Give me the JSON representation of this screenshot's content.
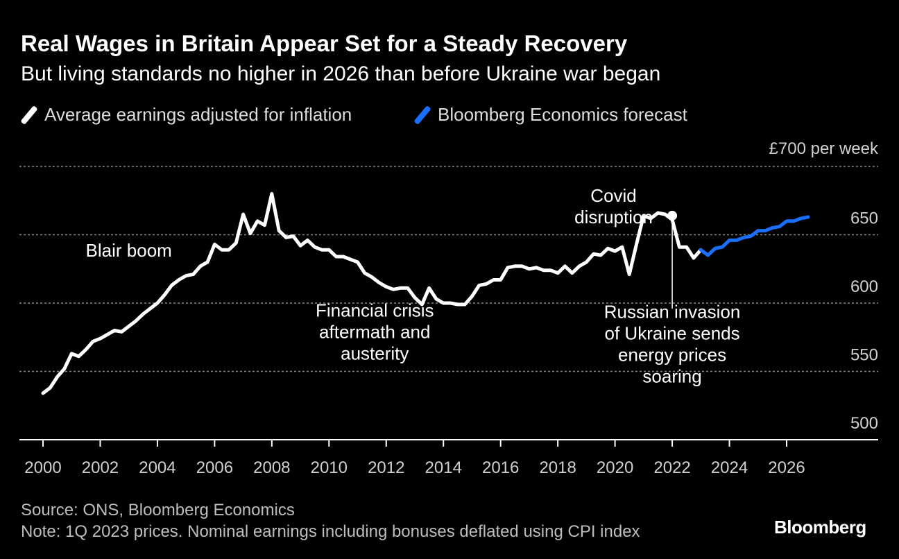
{
  "title": "Real Wages in Britain Appear Set for a Steady Recovery",
  "subtitle": "But living standards no higher in 2026 than before Ukraine war began",
  "legend": [
    {
      "label": "Average earnings adjusted for inflation",
      "color": "#ffffff"
    },
    {
      "label": "Bloomberg Economics forecast",
      "color": "#1a6fff"
    }
  ],
  "footer": {
    "source": "Source: ONS, Bloomberg Economics",
    "note": "Note: 1Q 2023 prices. Nominal earnings including bonuses deflated using CPI index",
    "brand": "Bloomberg"
  },
  "chart_data": {
    "type": "line",
    "xlim": [
      2000,
      2027.5
    ],
    "ylim": [
      500,
      700
    ],
    "x_ticks": [
      2000,
      2002,
      2004,
      2006,
      2008,
      2010,
      2012,
      2014,
      2016,
      2018,
      2020,
      2022,
      2024,
      2026
    ],
    "y_ticks": [
      500,
      550,
      600,
      650,
      700
    ],
    "y_tick_labels": [
      "500",
      "550",
      "600",
      "650",
      "£700"
    ],
    "y_unit_label": "per week",
    "grid": "horizontal-dashed",
    "series": [
      {
        "name": "Average earnings adjusted for inflation",
        "color": "#ffffff",
        "points": [
          [
            2000.0,
            534
          ],
          [
            2000.25,
            538
          ],
          [
            2000.5,
            546
          ],
          [
            2000.75,
            552
          ],
          [
            2001.0,
            563
          ],
          [
            2001.25,
            561
          ],
          [
            2001.5,
            566
          ],
          [
            2001.75,
            572
          ],
          [
            2002.0,
            574
          ],
          [
            2002.25,
            577
          ],
          [
            2002.5,
            580
          ],
          [
            2002.75,
            579
          ],
          [
            2003.0,
            583
          ],
          [
            2003.25,
            587
          ],
          [
            2003.5,
            592
          ],
          [
            2003.75,
            596
          ],
          [
            2004.0,
            600
          ],
          [
            2004.25,
            606
          ],
          [
            2004.5,
            613
          ],
          [
            2004.75,
            617
          ],
          [
            2005.0,
            620
          ],
          [
            2005.25,
            621
          ],
          [
            2005.5,
            627
          ],
          [
            2005.75,
            630
          ],
          [
            2006.0,
            643
          ],
          [
            2006.25,
            639
          ],
          [
            2006.5,
            639
          ],
          [
            2006.75,
            644
          ],
          [
            2007.0,
            665
          ],
          [
            2007.25,
            651
          ],
          [
            2007.5,
            660
          ],
          [
            2007.75,
            657
          ],
          [
            2008.0,
            680
          ],
          [
            2008.25,
            653
          ],
          [
            2008.5,
            648
          ],
          [
            2008.75,
            649
          ],
          [
            2009.0,
            642
          ],
          [
            2009.25,
            646
          ],
          [
            2009.5,
            641
          ],
          [
            2009.75,
            639
          ],
          [
            2010.0,
            639
          ],
          [
            2010.25,
            634
          ],
          [
            2010.5,
            634
          ],
          [
            2010.75,
            632
          ],
          [
            2011.0,
            630
          ],
          [
            2011.25,
            622
          ],
          [
            2011.5,
            619
          ],
          [
            2011.75,
            615
          ],
          [
            2012.0,
            612
          ],
          [
            2012.25,
            610
          ],
          [
            2012.5,
            611
          ],
          [
            2012.75,
            611
          ],
          [
            2013.0,
            604
          ],
          [
            2013.25,
            599
          ],
          [
            2013.5,
            611
          ],
          [
            2013.75,
            603
          ],
          [
            2014.0,
            600
          ],
          [
            2014.25,
            600
          ],
          [
            2014.5,
            599
          ],
          [
            2014.75,
            599
          ],
          [
            2015.0,
            605
          ],
          [
            2015.25,
            613
          ],
          [
            2015.5,
            614
          ],
          [
            2015.75,
            617
          ],
          [
            2016.0,
            617
          ],
          [
            2016.25,
            626
          ],
          [
            2016.5,
            627
          ],
          [
            2016.75,
            627
          ],
          [
            2017.0,
            625
          ],
          [
            2017.25,
            626
          ],
          [
            2017.5,
            624
          ],
          [
            2017.75,
            624
          ],
          [
            2018.0,
            622
          ],
          [
            2018.25,
            627
          ],
          [
            2018.5,
            622
          ],
          [
            2018.75,
            627
          ],
          [
            2019.0,
            630
          ],
          [
            2019.25,
            636
          ],
          [
            2019.5,
            635
          ],
          [
            2019.75,
            640
          ],
          [
            2020.0,
            638
          ],
          [
            2020.25,
            641
          ],
          [
            2020.5,
            621
          ],
          [
            2020.75,
            643
          ],
          [
            2021.0,
            664
          ],
          [
            2021.25,
            662
          ],
          [
            2021.5,
            666
          ],
          [
            2021.75,
            665
          ],
          [
            2022.0,
            661
          ],
          [
            2022.25,
            641
          ],
          [
            2022.5,
            641
          ],
          [
            2022.75,
            633
          ],
          [
            2023.0,
            639
          ]
        ]
      },
      {
        "name": "Bloomberg Economics forecast",
        "color": "#1a6fff",
        "points": [
          [
            2023.0,
            639
          ],
          [
            2023.25,
            635
          ],
          [
            2023.5,
            640
          ],
          [
            2023.75,
            641
          ],
          [
            2024.0,
            646
          ],
          [
            2024.25,
            646
          ],
          [
            2024.5,
            648
          ],
          [
            2024.75,
            649
          ],
          [
            2025.0,
            653
          ],
          [
            2025.25,
            653
          ],
          [
            2025.5,
            655
          ],
          [
            2025.75,
            656
          ],
          [
            2026.0,
            660
          ],
          [
            2026.25,
            660
          ],
          [
            2026.5,
            662
          ],
          [
            2026.75,
            663
          ]
        ]
      }
    ],
    "annotations": [
      {
        "id": "blair",
        "lines": [
          "Blair boom"
        ],
        "x": 2003.0,
        "y": 634,
        "align": "middle"
      },
      {
        "id": "crisis",
        "lines": [
          "Financial crisis",
          "aftermath and",
          "austerity"
        ],
        "x": 2011.6,
        "y": 590,
        "align": "middle"
      },
      {
        "id": "covid",
        "lines": [
          "Covid",
          "disruption"
        ],
        "x": 2019.95,
        "y": 674,
        "align": "middle"
      },
      {
        "id": "invasion",
        "lines": [
          "Russian invasion",
          "of Ukraine sends",
          "energy prices",
          "soaring"
        ],
        "x": 2022.0,
        "y": 589,
        "align": "middle",
        "marker": [
          2022.0,
          664
        ],
        "leader_to_y": 596
      }
    ]
  }
}
